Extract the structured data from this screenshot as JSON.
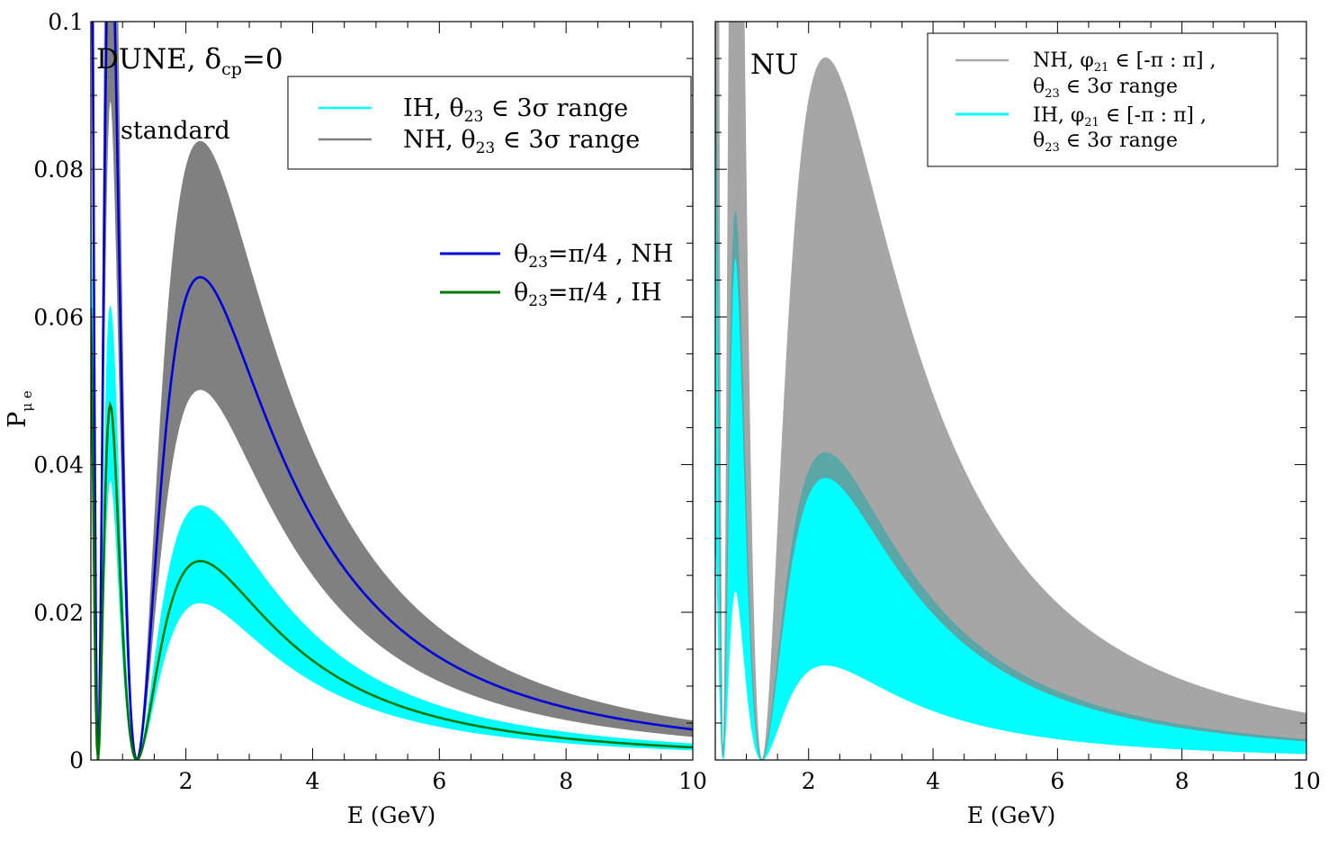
{
  "chart_data": [
    {
      "type": "area",
      "panel": "left",
      "label_main": "DUNE, δ",
      "label_sub": "cp",
      "label_tail": "=0",
      "subtitle": "standard",
      "xlabel": "E (GeV)",
      "ylabel_main": "P",
      "ylabel_sub": "μ e",
      "xlim": [
        0.5,
        10
      ],
      "ylim": [
        0,
        0.1
      ],
      "xticks": [
        2,
        4,
        6,
        8,
        10
      ],
      "yticks": [
        0,
        0.02,
        0.04,
        0.06,
        0.08,
        0.1
      ],
      "ytick_labels": [
        "0",
        "0.02",
        "0.04",
        "0.06",
        "0.08",
        "0.1"
      ],
      "legend_bands": [
        {
          "name_a": "IH, θ",
          "sub": "23",
          "name_b": " ∈ 3σ range",
          "color": "#00ffff"
        },
        {
          "name_a": "NH, θ",
          "sub": "23",
          "name_b": " ∈ 3σ range",
          "color": "#808080"
        }
      ],
      "legend_lines": [
        {
          "name_a": "θ",
          "sub": "23",
          "name_b": "=π/4 , NH",
          "color": "#0000dd"
        },
        {
          "name_a": "θ",
          "sub": "23",
          "name_b": "=π/4 , IH",
          "color": "#007700"
        }
      ],
      "series": [
        {
          "name": "NH band",
          "kind": "band",
          "color": "#808080",
          "amp_lo": 0.0488,
          "amp_hi": 0.0815
        },
        {
          "name": "IH band",
          "kind": "band",
          "color": "#00ffff",
          "amp_lo": 0.0207,
          "amp_hi": 0.0335
        },
        {
          "name": "θ23=π/4 , NH",
          "kind": "line",
          "color": "#0000dd",
          "amp": 0.0636
        },
        {
          "name": "θ23=π/4 , IH",
          "kind": "line",
          "color": "#007700",
          "amp": 0.0262
        }
      ],
      "peak_energy_gev": 2.45,
      "dip_energy_gev": 1.27,
      "second_peak_energy_gev": 0.85
    },
    {
      "type": "area",
      "panel": "right",
      "label": "NU",
      "xlabel": "E (GeV)",
      "xlim": [
        0.5,
        10
      ],
      "ylim": [
        0,
        0.1
      ],
      "xticks": [
        2,
        4,
        6,
        8,
        10
      ],
      "legend": [
        {
          "line1_a": "NH, φ",
          "line1_sub": "21",
          "line1_b": " ∈ [-π : π] ,",
          "line2_a": " θ",
          "line2_sub": "23",
          "line2_b": " ∈ 3σ range",
          "color": "#a9a9a9"
        },
        {
          "line1_a": "IH, φ",
          "line1_sub": "21",
          "line1_b": " ∈ [-π : π] ,",
          "line2_a": " θ",
          "line2_sub": "23",
          "line2_b": " ∈ 3σ range",
          "color": "#00ffff"
        }
      ],
      "series": [
        {
          "name": "NH band",
          "kind": "band",
          "color": "#a6a6a6",
          "amp_lo": 0.0405,
          "amp_hi": 0.0925
        },
        {
          "name": "IH band",
          "kind": "band",
          "color": "#00ffff",
          "amp_lo": 0.0125,
          "amp_hi": 0.0372
        },
        {
          "name": "overlap",
          "kind": "band",
          "color": "#5ba6a6",
          "amp_lo": 0.0372,
          "amp_hi": 0.0405
        }
      ],
      "peak_energy_gev": 2.5
    }
  ]
}
